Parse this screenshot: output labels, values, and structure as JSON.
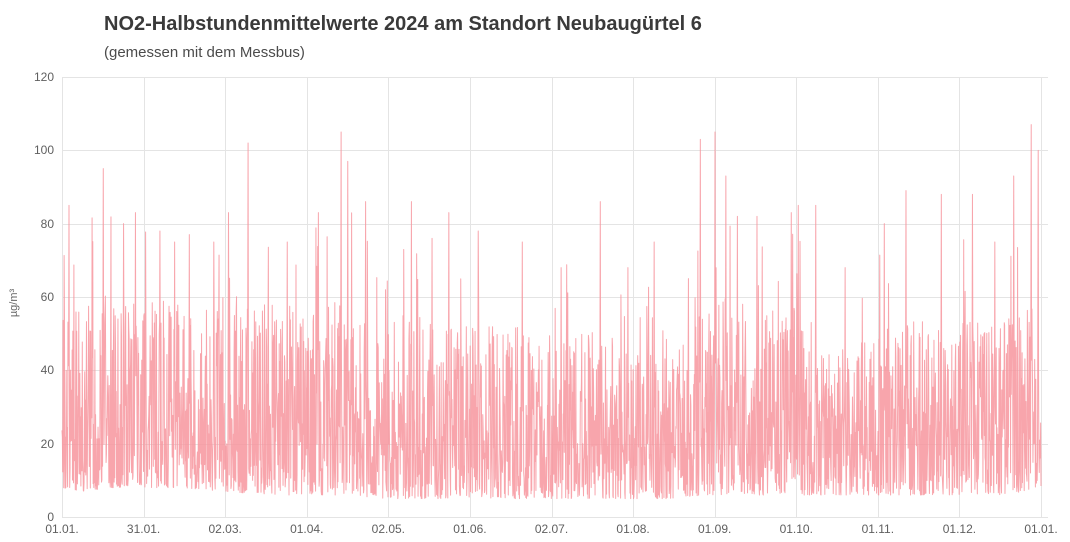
{
  "chart_data": {
    "type": "line",
    "title": "NO2-Halbstundenmittelwerte 2024 am Standort Neubaugürtel 6",
    "subtitle": "(gemessen mit dem Messbus)",
    "ylabel": "µg/m³",
    "xlabel": "",
    "ylim": [
      0,
      120
    ],
    "yticks": [
      0,
      20,
      40,
      60,
      80,
      100,
      120
    ],
    "xtick_labels": [
      "01.01.",
      "31.01.",
      "02.03.",
      "01.04.",
      "02.05.",
      "01.06.",
      "02.07.",
      "01.08.",
      "01.09.",
      "01.10.",
      "01.11.",
      "01.12.",
      "01.01."
    ],
    "grid": true,
    "legend_position": "none",
    "colors": {
      "series": "#F7959E",
      "grid": "#E4E4E4",
      "axis_text": "#5F5F5F",
      "title_text": "#3A3A3A",
      "background": "#FFFFFF"
    },
    "series": [
      {
        "name": "NO2-Halbstundenmittelwerte",
        "color": "#F7959E",
        "observed_value_range": [
          5,
          107
        ],
        "band_envelope": [
          [
            0.0,
            8,
            58
          ],
          [
            0.02,
            7,
            60
          ],
          [
            0.05,
            8,
            62
          ],
          [
            0.085,
            8,
            60
          ],
          [
            0.12,
            8,
            58
          ],
          [
            0.166,
            7,
            56
          ],
          [
            0.21,
            6,
            58
          ],
          [
            0.25,
            6,
            58
          ],
          [
            0.29,
            6,
            62
          ],
          [
            0.333,
            5,
            56
          ],
          [
            0.37,
            5,
            55
          ],
          [
            0.416,
            5,
            52
          ],
          [
            0.46,
            5,
            52
          ],
          [
            0.5,
            5,
            50
          ],
          [
            0.54,
            5,
            52
          ],
          [
            0.583,
            5,
            46
          ],
          [
            0.62,
            5,
            44
          ],
          [
            0.655,
            6,
            56
          ],
          [
            0.68,
            6,
            62
          ],
          [
            0.71,
            6,
            55
          ],
          [
            0.75,
            6,
            58
          ],
          [
            0.79,
            6,
            48
          ],
          [
            0.833,
            6,
            52
          ],
          [
            0.87,
            6,
            55
          ],
          [
            0.916,
            6,
            55
          ],
          [
            0.95,
            6,
            52
          ],
          [
            0.975,
            6,
            58
          ],
          [
            1.0,
            7,
            60
          ]
        ],
        "notable_peaks": [
          [
            0.007,
            85
          ],
          [
            0.042,
            95
          ],
          [
            0.063,
            80
          ],
          [
            0.075,
            83
          ],
          [
            0.1,
            78
          ],
          [
            0.115,
            75
          ],
          [
            0.13,
            77
          ],
          [
            0.155,
            75
          ],
          [
            0.17,
            83
          ],
          [
            0.19,
            102
          ],
          [
            0.23,
            75
          ],
          [
            0.262,
            83
          ],
          [
            0.285,
            105
          ],
          [
            0.292,
            97
          ],
          [
            0.31,
            86
          ],
          [
            0.357,
            86
          ],
          [
            0.378,
            76
          ],
          [
            0.395,
            83
          ],
          [
            0.425,
            78
          ],
          [
            0.47,
            75
          ],
          [
            0.51,
            68
          ],
          [
            0.55,
            86
          ],
          [
            0.578,
            68
          ],
          [
            0.605,
            75
          ],
          [
            0.64,
            65
          ],
          [
            0.652,
            103
          ],
          [
            0.667,
            105
          ],
          [
            0.678,
            93
          ],
          [
            0.69,
            82
          ],
          [
            0.71,
            82
          ],
          [
            0.745,
            83
          ],
          [
            0.752,
            85
          ],
          [
            0.77,
            85
          ],
          [
            0.8,
            68
          ],
          [
            0.84,
            80
          ],
          [
            0.862,
            89
          ],
          [
            0.898,
            88
          ],
          [
            0.93,
            88
          ],
          [
            0.953,
            75
          ],
          [
            0.972,
            93
          ],
          [
            0.99,
            107
          ],
          [
            0.997,
            100
          ]
        ]
      }
    ]
  }
}
